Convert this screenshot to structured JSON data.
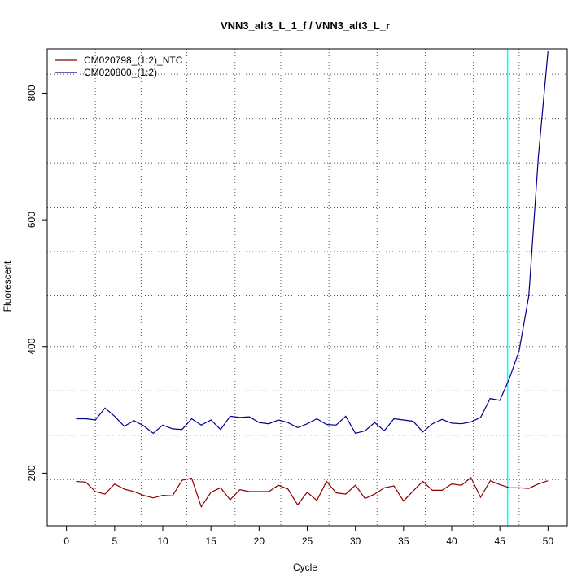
{
  "chart_data": {
    "type": "line",
    "title": "VNN3_alt3_L_1_f / VNN3_alt3_L_r",
    "xlabel": "Cycle",
    "ylabel": "Fluorescent",
    "xlim": [
      -2,
      52
    ],
    "ylim": [
      117,
      870
    ],
    "x_ticks": [
      0,
      5,
      10,
      15,
      20,
      25,
      30,
      35,
      40,
      45,
      50
    ],
    "y_ticks": [
      200,
      400,
      600,
      800
    ],
    "grid": "dotted",
    "grid_x": [
      3,
      7.75,
      12.5,
      17.5,
      22.25,
      27.25,
      32.25,
      37.25,
      42.25,
      47
    ],
    "grid_y": [
      190,
      260,
      330,
      400,
      480,
      550,
      620,
      690,
      760,
      830
    ],
    "threshold_x": 45.8,
    "threshold_color": "#00ffff",
    "legend_position": "top-left",
    "x": [
      1,
      2,
      3,
      4,
      5,
      6,
      7,
      8,
      9,
      10,
      11,
      12,
      13,
      14,
      15,
      16,
      17,
      18,
      19,
      20,
      21,
      22,
      23,
      24,
      25,
      26,
      27,
      28,
      29,
      30,
      31,
      32,
      33,
      34,
      35,
      36,
      37,
      38,
      39,
      40,
      41,
      42,
      43,
      44,
      45,
      46,
      47,
      48,
      49,
      50
    ],
    "series": [
      {
        "name": "CM020798_(1:2)_NTC",
        "color": "#8b0000",
        "values": [
          187,
          186,
          171,
          167,
          183,
          175,
          171,
          165,
          161,
          165,
          164,
          189,
          192,
          147,
          170,
          177,
          158,
          174,
          171,
          171,
          171,
          181,
          175,
          150,
          170,
          157,
          187,
          169,
          167,
          181,
          160,
          167,
          177,
          180,
          156,
          172,
          187,
          173,
          173,
          183,
          181,
          193,
          162,
          188,
          182,
          177,
          177,
          176,
          183,
          188
        ]
      },
      {
        "name": "CM020800_(1:2)",
        "color": "#00008b",
        "values": [
          286,
          286,
          284,
          303,
          290,
          274,
          283,
          275,
          263,
          276,
          270,
          269,
          286,
          276,
          284,
          269,
          290,
          288,
          289,
          280,
          278,
          284,
          280,
          272,
          278,
          286,
          277,
          276,
          290,
          263,
          267,
          280,
          267,
          286,
          284,
          282,
          265,
          278,
          285,
          279,
          278,
          281,
          288,
          318,
          315,
          350,
          393,
          480,
          700,
          866
        ]
      }
    ]
  }
}
